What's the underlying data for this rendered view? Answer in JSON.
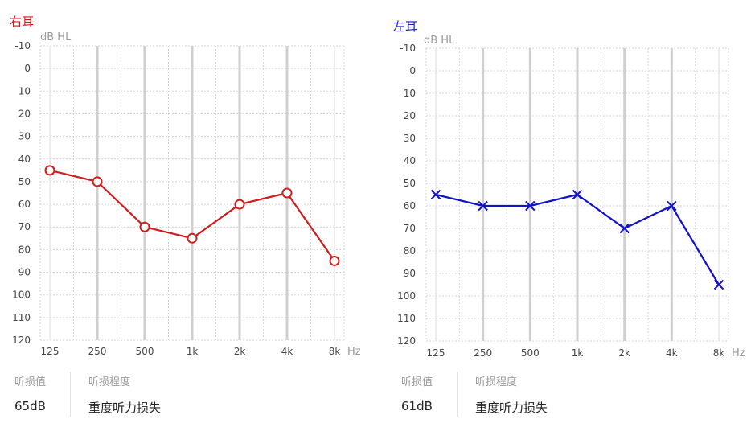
{
  "chart_data": [
    {
      "type": "line",
      "title": "右耳",
      "title_color": "#d7141a",
      "ylabel": "dB HL",
      "xunit": "Hz",
      "categories": [
        "125",
        "250",
        "500",
        "1k",
        "2k",
        "4k",
        "8k"
      ],
      "ylim": [
        -10,
        120
      ],
      "ytick_step": 10,
      "y_inverted": true,
      "grid": true,
      "series": [
        {
          "marker": "circle",
          "color": "#d01c1c",
          "values": [
            45,
            50,
            70,
            75,
            60,
            55,
            85
          ]
        }
      ]
    },
    {
      "type": "line",
      "title": "左耳",
      "title_color": "#1a1ac0",
      "ylabel": "dB HL",
      "xunit": "Hz",
      "categories": [
        "125",
        "250",
        "500",
        "1k",
        "2k",
        "4k",
        "8k"
      ],
      "ylim": [
        -10,
        120
      ],
      "ytick_step": 10,
      "y_inverted": true,
      "grid": true,
      "series": [
        {
          "marker": "x",
          "color": "#1212c8",
          "values": [
            55,
            60,
            60,
            55,
            70,
            60,
            95
          ]
        }
      ]
    }
  ],
  "summary": {
    "right": {
      "loss_label": "听损值",
      "loss_value": "65dB",
      "degree_label": "听损程度",
      "degree_value": "重度听力损失"
    },
    "left": {
      "loss_label": "听损值",
      "loss_value": "61dB",
      "degree_label": "听损程度",
      "degree_value": "重度听力损失"
    }
  }
}
